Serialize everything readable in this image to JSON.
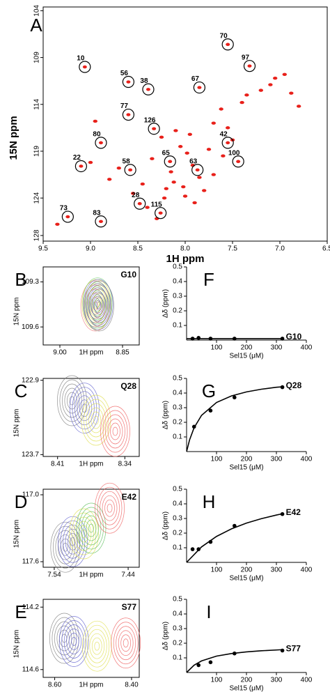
{
  "chart_data": [
    {
      "type": "scatter",
      "panel": "A",
      "xlabel": "1H ppm",
      "ylabel": "15N ppm",
      "xlim": [
        9.5,
        6.5
      ],
      "ylim": [
        103.6,
        128.6
      ],
      "xticks": [
        9.5,
        {
          "value": 9,
          "label": "9.0"
        },
        8.5,
        {
          "value": 8,
          "label": "8.0"
        },
        7.5,
        {
          "value": 7,
          "label": "7.0"
        },
        6.5
      ],
      "yticks": [
        104,
        109,
        114,
        119,
        124,
        128
      ],
      "color": "#e8201a",
      "labeled": {
        "labels": [
          "70",
          "97",
          "67",
          "56",
          "38",
          "10",
          "77",
          "126",
          "80",
          "42",
          "100",
          "65",
          "63",
          "58",
          "22",
          "28",
          "115",
          "73",
          "83"
        ],
        "x": [
          7.55,
          7.32,
          7.85,
          8.6,
          8.39,
          9.06,
          8.6,
          8.33,
          8.89,
          7.55,
          7.44,
          8.16,
          7.87,
          8.58,
          9.1,
          8.48,
          8.26,
          9.24,
          8.89
        ],
        "values": [
          107.6,
          109.9,
          112.2,
          111.6,
          112.4,
          110.0,
          115.1,
          116.6,
          118.1,
          118.1,
          120.1,
          120.1,
          121.0,
          121.0,
          120.6,
          124.6,
          125.6,
          126.0,
          126.5
        ]
      },
      "peaks": {
        "x": [
          8.05,
          7.98,
          7.92,
          7.85,
          8.12,
          8.2,
          8.0,
          7.9,
          7.7,
          7.62,
          7.4,
          7.2,
          7.1,
          6.95,
          6.88,
          6.8,
          8.35,
          8.45,
          8.55,
          8.7,
          8.8,
          9.0,
          8.25,
          8.1,
          7.95,
          7.75,
          7.6,
          8.4,
          8.15,
          8.02,
          7.8,
          8.3,
          8.22,
          7.7,
          7.55,
          7.5,
          7.35,
          9.35,
          8.95,
          7.05
        ],
        "values": [
          118.5,
          119.2,
          120.5,
          121.8,
          122.3,
          123.0,
          123.8,
          124.5,
          116.0,
          114.5,
          113.8,
          112.5,
          111.9,
          110.8,
          112.8,
          114.2,
          119.8,
          122.5,
          123.5,
          120.8,
          122.0,
          120.2,
          117.5,
          116.8,
          117.2,
          118.8,
          119.5,
          125.0,
          121.2,
          122.8,
          123.2,
          126.2,
          124.0,
          121.5,
          116.5,
          117.8,
          113.0,
          126.8,
          115.8,
          111.2
        ]
      }
    },
    {
      "type": "contour",
      "panel": "B",
      "label": "G10",
      "xlabel": "1H ppm",
      "ylabel": "15N ppm",
      "xlim": [
        9.04,
        8.81
      ],
      "ylim": [
        109.2,
        109.72
      ],
      "xticks": [
        {
          "value": 9,
          "label": "9.00"
        },
        8.85
      ],
      "yticks": [
        109.3,
        109.6
      ],
      "peaks": {
        "colors": [
          "#e77",
          "#dd4",
          "#6c6",
          "#66c",
          "#777"
        ],
        "x": [
          8.915,
          8.912,
          8.91,
          8.908,
          8.906
        ],
        "values": [
          109.46,
          109.45,
          109.44,
          109.45,
          109.46
        ]
      }
    },
    {
      "type": "contour",
      "panel": "C",
      "label": "Q28",
      "xlabel": "1H ppm",
      "ylabel": "15N ppm",
      "xlim": [
        8.425,
        8.325
      ],
      "ylim": [
        122.88,
        123.72
      ],
      "xticks": [
        8.41,
        8.34
      ],
      "yticks": [
        122.9,
        123.7
      ],
      "peaks": {
        "colors": [
          "#777",
          "#55c",
          "#dd4",
          "#e55"
        ],
        "x": [
          8.395,
          8.382,
          8.37,
          8.35
        ],
        "values": [
          123.12,
          123.2,
          123.33,
          123.45
        ]
      }
    },
    {
      "type": "contour",
      "panel": "D",
      "label": "E42",
      "xlabel": "1H ppm",
      "ylabel": "15N ppm",
      "xlim": [
        7.555,
        7.425
      ],
      "ylim": [
        116.95,
        117.65
      ],
      "xticks": [
        7.54,
        7.44
      ],
      "yticks": [
        {
          "value": 117,
          "label": "117.0"
        },
        117.6
      ],
      "peaks": {
        "colors": [
          "#777",
          "#55c",
          "#dd4",
          "#5b5",
          "#e55"
        ],
        "x": [
          7.525,
          7.515,
          7.5,
          7.49,
          7.465
        ],
        "values": [
          117.47,
          117.42,
          117.35,
          117.3,
          117.12
        ]
      }
    },
    {
      "type": "contour",
      "panel": "E",
      "label": "S77",
      "xlabel": "1H ppm",
      "ylabel": "15N ppm",
      "xlim": [
        8.63,
        8.38
      ],
      "ylim": [
        114.15,
        114.65
      ],
      "xticks": [
        {
          "value": 8.6,
          "label": "8.60"
        },
        {
          "value": 8.4,
          "label": "8.40"
        }
      ],
      "yticks": [
        114.2,
        114.6
      ],
      "peaks": {
        "colors": [
          "#777",
          "#55c",
          "#dd4",
          "#e55"
        ],
        "x": [
          8.575,
          8.55,
          8.49,
          8.415
        ],
        "values": [
          114.4,
          114.42,
          114.45,
          114.43
        ]
      }
    },
    {
      "type": "line",
      "panel": "F",
      "label": "G10",
      "xlabel": "Sel15 (μM)",
      "ylabel": "Δδ (ppm)",
      "xlim": [
        0,
        400
      ],
      "ylim": [
        0,
        0.5
      ],
      "xticks": [
        100,
        200,
        300,
        400
      ],
      "yticks": [
        0.1,
        0.2,
        0.3,
        0.4,
        0.5
      ],
      "color": "#000",
      "x": [
        20,
        40,
        80,
        160,
        320
      ],
      "values": [
        0.01,
        0.015,
        0.01,
        0.01,
        0.01
      ],
      "fit": {
        "x": [
          0,
          100,
          200,
          320
        ],
        "values": [
          0.01,
          0.01,
          0.01,
          0.01
        ]
      }
    },
    {
      "type": "line",
      "panel": "G",
      "label": "Q28",
      "xlabel": "Sel15 (μM)",
      "ylabel": "Δδ (ppm)",
      "xlim": [
        0,
        400
      ],
      "ylim": [
        0,
        0.5
      ],
      "xticks": [
        100,
        200,
        300,
        400
      ],
      "yticks": [
        0.1,
        0.2,
        0.3,
        0.4,
        0.5
      ],
      "color": "#000",
      "x": [
        25,
        80,
        160,
        320
      ],
      "values": [
        0.17,
        0.28,
        0.37,
        0.44
      ],
      "fit": {
        "x": [
          0,
          10,
          25,
          50,
          100,
          150,
          200,
          250,
          300,
          320
        ],
        "values": [
          0,
          0.08,
          0.1625,
          0.2476,
          0.3355,
          0.3805,
          0.4078,
          0.4262,
          0.4394,
          0.4424
        ]
      }
    },
    {
      "type": "line",
      "panel": "H",
      "label": "E42",
      "xlabel": "Sel15 (μM)",
      "ylabel": "Δδ (ppm)",
      "xlim": [
        0,
        400
      ],
      "ylim": [
        0,
        0.5
      ],
      "xticks": [
        100,
        200,
        300,
        400
      ],
      "yticks": [
        0.1,
        0.2,
        0.3,
        0.4,
        0.5
      ],
      "color": "#000",
      "x": [
        20,
        40,
        80,
        160,
        320
      ],
      "values": [
        0.09,
        0.09,
        0.14,
        0.25,
        0.33
      ],
      "fit": {
        "x": [
          0,
          50,
          100,
          150,
          200,
          250,
          300,
          320
        ],
        "values": [
          0,
          0.1058,
          0.1774,
          0.2292,
          0.2683,
          0.2989,
          0.3235,
          0.3321
        ]
      }
    },
    {
      "type": "line",
      "panel": "I",
      "label": "S77",
      "xlabel": "Sel15 (μM)",
      "ylabel": "Δδ (ppm)",
      "xlim": [
        0,
        400
      ],
      "ylim": [
        0,
        0.5
      ],
      "xticks": [
        100,
        200,
        300,
        400
      ],
      "yticks": [
        0.1,
        0.2,
        0.3,
        0.4,
        0.5
      ],
      "color": "#000",
      "x": [
        40,
        80,
        160,
        320
      ],
      "values": [
        0.05,
        0.07,
        0.13,
        0.15
      ],
      "fit": {
        "x": [
          0,
          25,
          50,
          100,
          150,
          200,
          250,
          320
        ],
        "values": [
          0,
          0.05,
          0.0792,
          0.1118,
          0.1295,
          0.1407,
          0.1484,
          0.1559
        ]
      }
    }
  ]
}
